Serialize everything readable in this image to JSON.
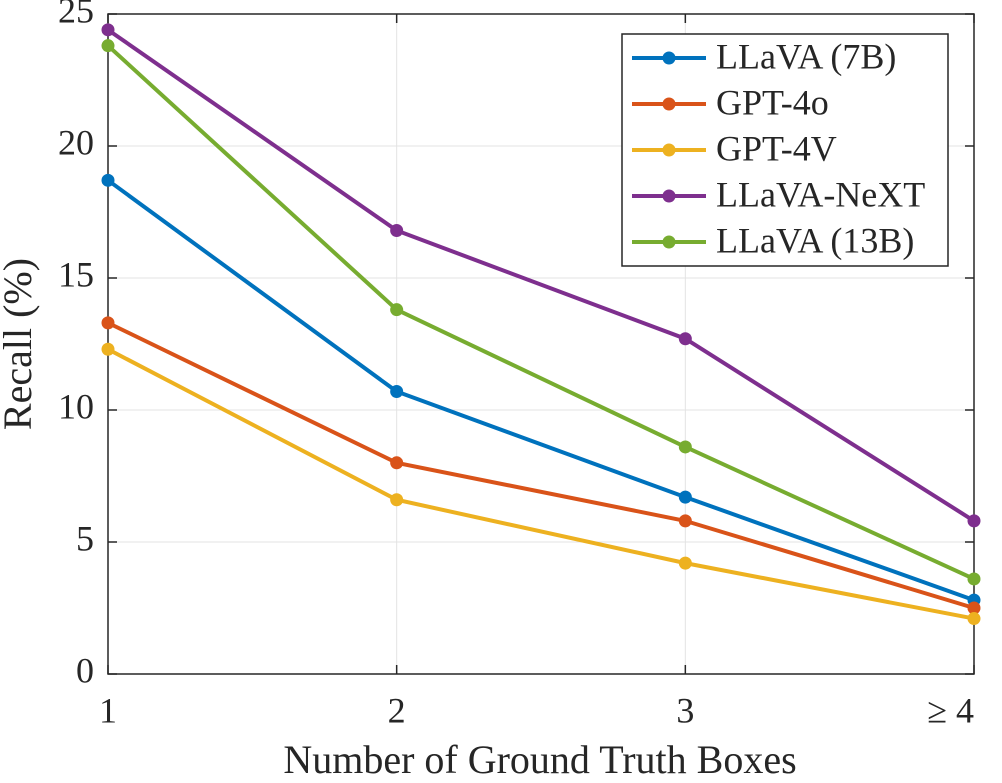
{
  "chart_data": {
    "type": "line",
    "x_label": "Number of Ground Truth Boxes",
    "y_label": "Recall (%)",
    "categories": [
      "1",
      "2",
      "3",
      "≥ 4"
    ],
    "series": [
      {
        "name": "LLaVA (7B)",
        "color": "#0072BD",
        "values": [
          18.7,
          10.7,
          6.7,
          2.8
        ]
      },
      {
        "name": "GPT-4o",
        "color": "#D95319",
        "values": [
          13.3,
          8.0,
          5.8,
          2.5
        ]
      },
      {
        "name": "GPT-4V",
        "color": "#EDB120",
        "values": [
          12.3,
          6.6,
          4.2,
          2.1
        ]
      },
      {
        "name": "LLaVA-NeXT",
        "color": "#7E2F8E",
        "values": [
          24.4,
          16.8,
          12.7,
          5.8
        ]
      },
      {
        "name": "LLaVA (13B)",
        "color": "#77AC30",
        "values": [
          23.8,
          13.8,
          8.6,
          3.6
        ]
      }
    ],
    "ylim": [
      0,
      25
    ],
    "yticks": [
      0,
      5,
      10,
      15,
      20,
      25
    ],
    "grid": true,
    "legend_location": "northeast"
  }
}
